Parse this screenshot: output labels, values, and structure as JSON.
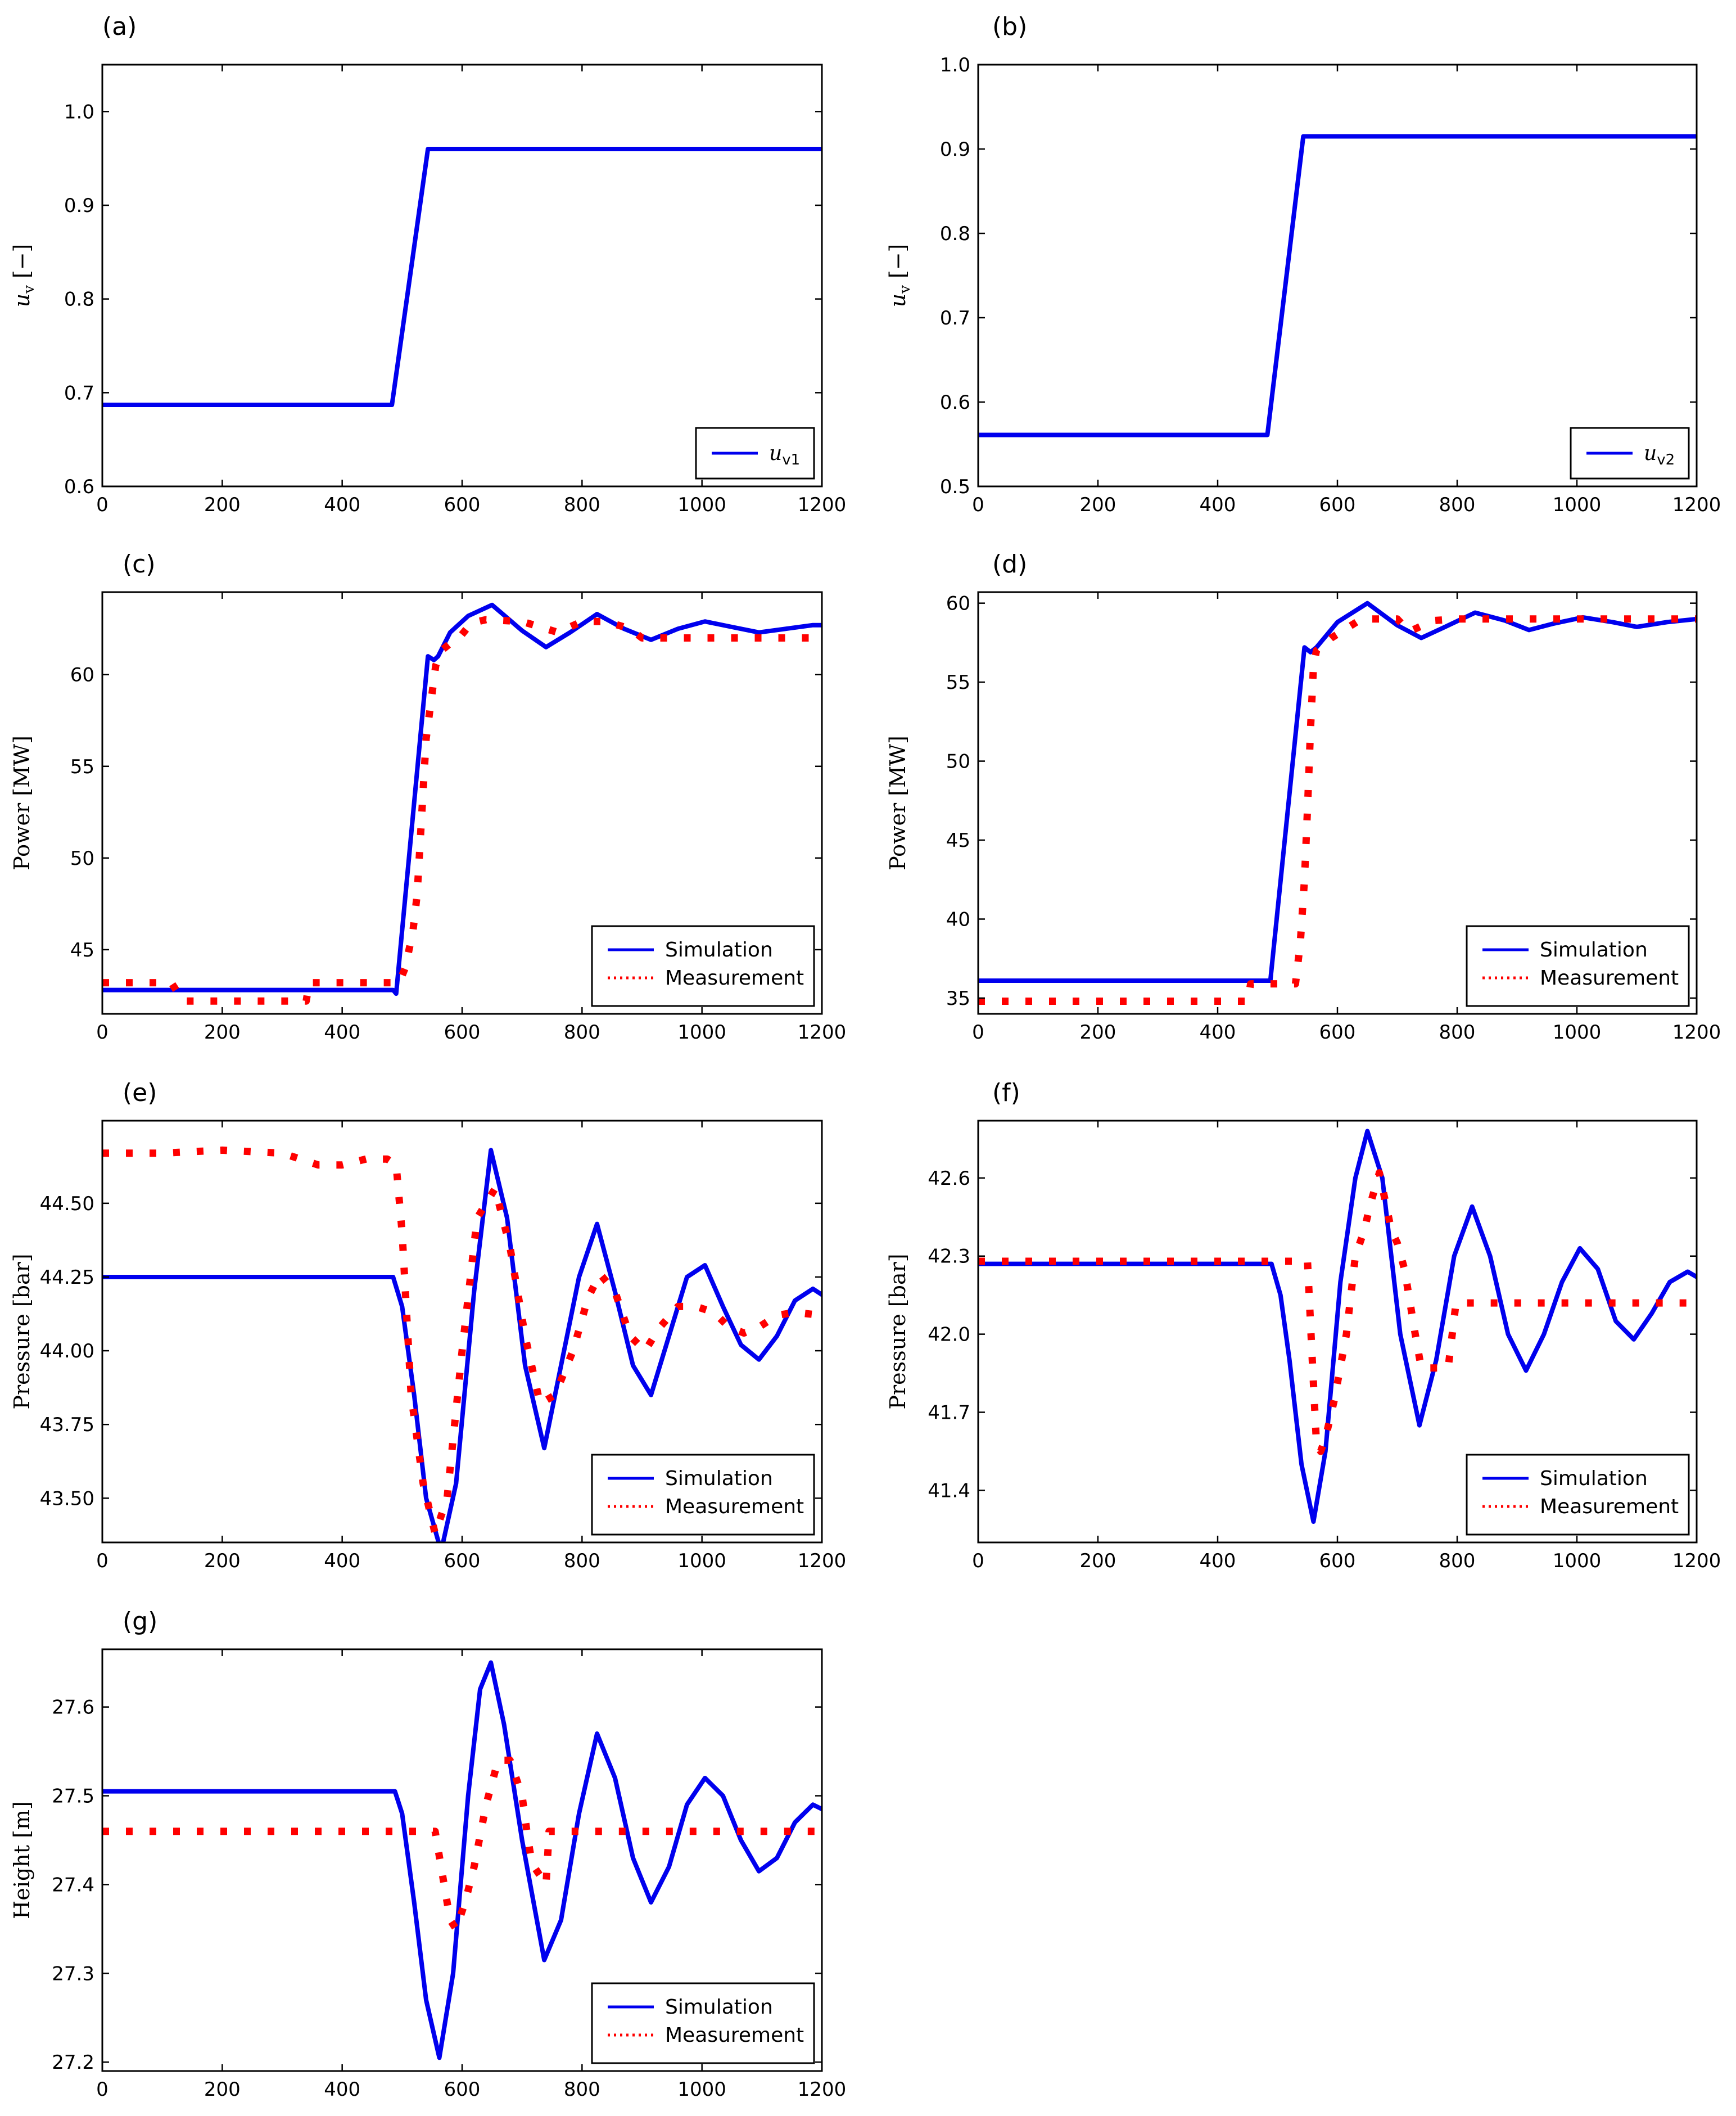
{
  "chart_data": [
    {
      "panel": "(a)",
      "type": "line",
      "ylabel": "u_v [−]",
      "xlim": [
        0,
        1200
      ],
      "ylim": [
        0.6,
        1.05
      ],
      "xticks": [
        0,
        200,
        400,
        600,
        800,
        1000,
        1200
      ],
      "yticks": [
        0.6,
        0.7,
        0.8,
        0.9,
        1.0
      ],
      "ytick_labels": [
        "0.6",
        "0.7",
        "0.8",
        "0.9",
        "1.0"
      ],
      "legend_position": "bottom-right",
      "series": [
        {
          "name": "u_v1",
          "legend_label": "u",
          "legend_sub": "v1",
          "style": "sim",
          "color": "#0000ee",
          "x": [
            0,
            483,
            543,
            1200
          ],
          "y": [
            0.687,
            0.687,
            0.96,
            0.96
          ]
        }
      ]
    },
    {
      "panel": "(b)",
      "type": "line",
      "ylabel": "u_v [−]",
      "xlim": [
        0,
        1200
      ],
      "ylim": [
        0.5,
        1.0
      ],
      "xticks": [
        0,
        200,
        400,
        600,
        800,
        1000,
        1200
      ],
      "yticks": [
        0.5,
        0.6,
        0.7,
        0.8,
        0.9,
        1.0
      ],
      "ytick_labels": [
        "0.5",
        "0.6",
        "0.7",
        "0.8",
        "0.9",
        "1.0"
      ],
      "legend_position": "bottom-right",
      "series": [
        {
          "name": "u_v2",
          "legend_label": "u",
          "legend_sub": "v2",
          "style": "sim",
          "color": "#0000ee",
          "x": [
            0,
            483,
            543,
            1200
          ],
          "y": [
            0.561,
            0.561,
            0.915,
            0.915
          ]
        }
      ]
    },
    {
      "panel": "(c)",
      "type": "line",
      "ylabel": "Power [MW]",
      "xlim": [
        0,
        1200
      ],
      "ylim": [
        41.5,
        64.5
      ],
      "xticks": [
        0,
        200,
        400,
        600,
        800,
        1000,
        1200
      ],
      "yticks": [
        45,
        50,
        55,
        60
      ],
      "ytick_labels": [
        "45",
        "50",
        "55",
        "60"
      ],
      "legend_position": "bottom-right",
      "series": [
        {
          "name": "Simulation",
          "style": "sim",
          "color": "#0000ee",
          "x": [
            0,
            485,
            490,
            543,
            553,
            560,
            580,
            610,
            650,
            700,
            740,
            780,
            825,
            870,
            915,
            960,
            1005,
            1050,
            1095,
            1140,
            1185,
            1200
          ],
          "y": [
            42.8,
            42.8,
            42.6,
            61.0,
            60.8,
            61.0,
            62.3,
            63.2,
            63.8,
            62.4,
            61.5,
            62.3,
            63.3,
            62.5,
            61.9,
            62.5,
            62.9,
            62.6,
            62.3,
            62.5,
            62.7,
            62.7
          ]
        },
        {
          "name": "Measurement",
          "style": "meas",
          "color": "#ff0000",
          "x": [
            0,
            115,
            135,
            340,
            345,
            495,
            505,
            518,
            525,
            532,
            540,
            548,
            556,
            565,
            580,
            595,
            615,
            640,
            700,
            760,
            800,
            840,
            880,
            900,
            960,
            1200
          ],
          "y": [
            43.2,
            43.2,
            42.2,
            42.2,
            43.2,
            43.2,
            44.0,
            46.0,
            48.0,
            52.0,
            56.5,
            58.5,
            60.5,
            61.3,
            61.7,
            62.0,
            62.8,
            63.0,
            62.9,
            62.3,
            62.9,
            62.9,
            62.5,
            62.0,
            62.0,
            62.0
          ]
        }
      ]
    },
    {
      "panel": "(d)",
      "type": "line",
      "ylabel": "Power [MW]",
      "xlim": [
        0,
        1200
      ],
      "ylim": [
        34,
        60.7
      ],
      "xticks": [
        0,
        200,
        400,
        600,
        800,
        1000,
        1200
      ],
      "yticks": [
        35,
        40,
        45,
        50,
        55,
        60
      ],
      "ytick_labels": [
        "35",
        "40",
        "45",
        "50",
        "55",
        "60"
      ],
      "legend_position": "bottom-right",
      "series": [
        {
          "name": "Simulation",
          "style": "sim",
          "color": "#0000ee",
          "x": [
            0,
            488,
            545,
            555,
            565,
            600,
            650,
            700,
            740,
            780,
            830,
            880,
            920,
            960,
            1010,
            1060,
            1100,
            1150,
            1200
          ],
          "y": [
            36.1,
            36.1,
            57.2,
            56.9,
            57.2,
            58.8,
            60.0,
            58.6,
            57.8,
            58.5,
            59.4,
            58.9,
            58.3,
            58.7,
            59.1,
            58.8,
            58.5,
            58.8,
            59.0
          ]
        },
        {
          "name": "Measurement",
          "style": "meas",
          "color": "#ff0000",
          "x": [
            0,
            450,
            455,
            530,
            538,
            545,
            550,
            555,
            560,
            565,
            575,
            590,
            640,
            700,
            720,
            760,
            800,
            1200
          ],
          "y": [
            34.8,
            34.8,
            35.9,
            35.9,
            38.5,
            42.5,
            47.0,
            52.0,
            56.0,
            57.0,
            57.3,
            57.8,
            59.0,
            59.0,
            58.2,
            58.9,
            59.0,
            59.0
          ]
        }
      ]
    },
    {
      "panel": "(e)",
      "type": "line",
      "ylabel": "Pressure [bar]",
      "xlim": [
        0,
        1200
      ],
      "ylim": [
        43.35,
        44.78
      ],
      "xticks": [
        0,
        200,
        400,
        600,
        800,
        1000,
        1200
      ],
      "yticks": [
        43.5,
        43.75,
        44.0,
        44.25,
        44.5
      ],
      "ytick_labels": [
        "43.50",
        "43.75",
        "44.00",
        "44.25",
        "44.50"
      ],
      "legend_position": "bottom-right",
      "series": [
        {
          "name": "Simulation",
          "style": "sim",
          "color": "#0000ee",
          "x": [
            0,
            485,
            500,
            520,
            540,
            565,
            590,
            620,
            648,
            675,
            705,
            737,
            765,
            795,
            825,
            855,
            885,
            915,
            945,
            975,
            1005,
            1035,
            1065,
            1095,
            1125,
            1155,
            1185,
            1200
          ],
          "y": [
            44.25,
            44.25,
            44.15,
            43.85,
            43.5,
            43.32,
            43.55,
            44.2,
            44.68,
            44.45,
            43.95,
            43.67,
            43.95,
            44.25,
            44.43,
            44.2,
            43.95,
            43.85,
            44.05,
            44.25,
            44.29,
            44.15,
            44.02,
            43.97,
            44.05,
            44.17,
            44.21,
            44.19
          ]
        },
        {
          "name": "Measurement",
          "style": "meas",
          "color": "#ff0000",
          "x": [
            0,
            100,
            200,
            300,
            330,
            360,
            400,
            440,
            475,
            490,
            500,
            515,
            535,
            555,
            575,
            600,
            625,
            655,
            680,
            705,
            730,
            755,
            785,
            810,
            830,
            855,
            880,
            905,
            930,
            960,
            990,
            1020,
            1045,
            1070,
            1095,
            1125,
            1155,
            1200
          ],
          "y": [
            44.67,
            44.67,
            44.68,
            44.67,
            44.65,
            44.63,
            44.63,
            44.65,
            44.65,
            44.63,
            44.4,
            43.85,
            43.55,
            43.38,
            43.5,
            44.0,
            44.45,
            44.55,
            44.35,
            44.05,
            43.82,
            43.85,
            44.0,
            44.18,
            44.26,
            44.2,
            44.05,
            44.0,
            44.08,
            44.15,
            44.15,
            44.13,
            44.08,
            44.06,
            44.08,
            44.12,
            44.13,
            44.12
          ]
        }
      ]
    },
    {
      "panel": "(f)",
      "type": "line",
      "ylabel": "Pressure [bar]",
      "xlim": [
        0,
        1200
      ],
      "ylim": [
        41.2,
        42.82
      ],
      "xticks": [
        0,
        200,
        400,
        600,
        800,
        1000,
        1200
      ],
      "yticks": [
        41.4,
        41.7,
        42.0,
        42.3,
        42.6
      ],
      "ytick_labels": [
        "41.4",
        "41.7",
        "42.0",
        "42.3",
        "42.6"
      ],
      "legend_position": "bottom-right",
      "series": [
        {
          "name": "Simulation",
          "style": "sim",
          "color": "#0000ee",
          "x": [
            0,
            490,
            505,
            520,
            540,
            560,
            580,
            605,
            630,
            650,
            675,
            705,
            737,
            765,
            795,
            825,
            855,
            885,
            915,
            945,
            975,
            1005,
            1035,
            1065,
            1095,
            1125,
            1155,
            1185,
            1200
          ],
          "y": [
            42.27,
            42.27,
            42.15,
            41.9,
            41.5,
            41.28,
            41.55,
            42.2,
            42.6,
            42.78,
            42.6,
            42.0,
            41.65,
            41.9,
            42.3,
            42.49,
            42.3,
            42.0,
            41.86,
            42.0,
            42.2,
            42.33,
            42.25,
            42.05,
            41.98,
            42.08,
            42.2,
            42.24,
            42.22
          ]
        },
        {
          "name": "Measurement",
          "style": "meas",
          "color": "#ff0000",
          "x": [
            0,
            550,
            558,
            565,
            572,
            580,
            595,
            615,
            630,
            645,
            655,
            670,
            690,
            700,
            712,
            730,
            740,
            760,
            785,
            798,
            815,
            1200
          ],
          "y": [
            42.28,
            42.28,
            41.9,
            41.58,
            41.55,
            41.6,
            41.75,
            42.0,
            42.3,
            42.4,
            42.5,
            42.62,
            42.4,
            42.35,
            42.25,
            42.0,
            41.87,
            41.87,
            41.87,
            42.12,
            42.12,
            42.12
          ]
        }
      ]
    },
    {
      "panel": "(g)",
      "type": "line",
      "ylabel": "Height [m]",
      "xlim": [
        0,
        1200
      ],
      "ylim": [
        27.19,
        27.665
      ],
      "xticks": [
        0,
        200,
        400,
        600,
        800,
        1000,
        1200
      ],
      "yticks": [
        27.2,
        27.3,
        27.4,
        27.5,
        27.6
      ],
      "ytick_labels": [
        "27.2",
        "27.3",
        "27.4",
        "27.5",
        "27.6"
      ],
      "legend_position": "bottom-right",
      "series": [
        {
          "name": "Simulation",
          "style": "sim",
          "color": "#0000ee",
          "x": [
            0,
            488,
            500,
            520,
            540,
            562,
            585,
            610,
            630,
            648,
            670,
            700,
            737,
            765,
            795,
            825,
            855,
            885,
            915,
            945,
            975,
            1005,
            1035,
            1065,
            1095,
            1125,
            1155,
            1185,
            1200
          ],
          "y": [
            27.505,
            27.505,
            27.48,
            27.38,
            27.27,
            27.205,
            27.3,
            27.5,
            27.62,
            27.65,
            27.58,
            27.45,
            27.315,
            27.36,
            27.48,
            27.57,
            27.52,
            27.43,
            27.38,
            27.42,
            27.49,
            27.52,
            27.5,
            27.45,
            27.415,
            27.43,
            27.47,
            27.49,
            27.485
          ]
        },
        {
          "name": "Measurement",
          "style": "meas",
          "color": "#ff0000",
          "x": [
            0,
            555,
            560,
            570,
            580,
            590,
            605,
            620,
            640,
            660,
            680,
            690,
            700,
            710,
            715,
            720,
            730,
            740,
            745,
            1200
          ],
          "y": [
            27.46,
            27.46,
            27.44,
            27.4,
            27.36,
            27.35,
            27.38,
            27.42,
            27.49,
            27.54,
            27.54,
            27.52,
            27.5,
            27.45,
            27.43,
            27.42,
            27.41,
            27.4,
            27.46,
            27.46
          ]
        }
      ]
    }
  ]
}
